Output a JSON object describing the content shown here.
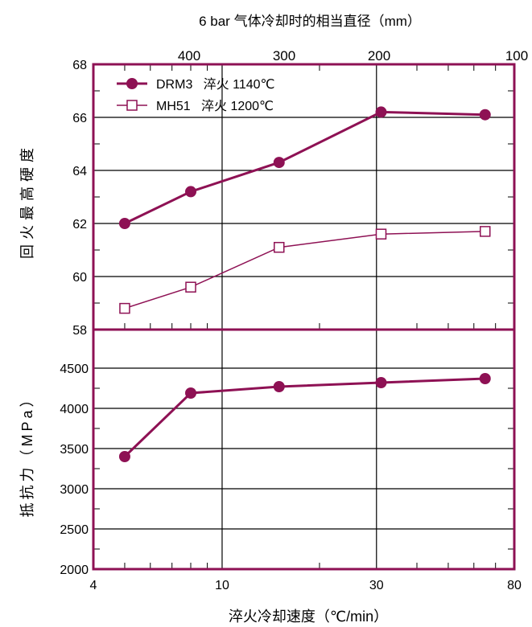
{
  "colors": {
    "frame": "#8e1154",
    "series": "#8e1154",
    "grid": "#000000",
    "text": "#000000"
  },
  "chart_data": [
    {
      "type": "line",
      "panel": "hardness",
      "title": "",
      "xlabel": "淬火冷却速度（℃/min）",
      "x_scale": "log",
      "xlim": [
        4,
        80
      ],
      "x_ticks": [
        4,
        10,
        30,
        80
      ],
      "secondary_x_label": "6 bar 气体冷却时的相当直径（mm）",
      "secondary_x_ticks": [
        "400",
        "300",
        "200",
        "100"
      ],
      "ylabel": "回火最高硬度",
      "ylim": [
        58,
        68
      ],
      "y_ticks": [
        58,
        60,
        62,
        64,
        66,
        68
      ],
      "grid": true,
      "legend": "top-left",
      "series": [
        {
          "name": "DRM3   淬火 1140℃",
          "marker": "filled-circle",
          "x": [
            5,
            8,
            15,
            31,
            65
          ],
          "y": [
            62.0,
            63.2,
            64.3,
            66.2,
            66.1
          ]
        },
        {
          "name": "MH51   淬火 1200℃",
          "marker": "open-square",
          "x": [
            5,
            8,
            15,
            31,
            65
          ],
          "y": [
            58.8,
            59.6,
            61.1,
            61.6,
            61.7
          ]
        }
      ]
    },
    {
      "type": "line",
      "panel": "resistance",
      "title": "",
      "xlabel": "淬火冷却速度（℃/min）",
      "x_scale": "log",
      "xlim": [
        4,
        80
      ],
      "x_ticks": [
        4,
        10,
        30,
        80
      ],
      "ylabel": "抵抗力（MPa）",
      "ylim": [
        2000,
        4500
      ],
      "y_ticks": [
        2000,
        2500,
        3000,
        3500,
        4000,
        4500
      ],
      "grid": true,
      "series": [
        {
          "marker": "filled-circle",
          "x": [
            5,
            8,
            15,
            31,
            65
          ],
          "y": [
            3400,
            4190,
            4270,
            4320,
            4370
          ]
        }
      ]
    }
  ],
  "labels": {
    "top_axis_title": "6 bar 气体冷却时的相当直径（mm）",
    "top_ticks": [
      "400",
      "300",
      "200",
      "100"
    ],
    "bottom_axis_title": "淬火冷却速度（℃/min）",
    "bottom_ticks": [
      "4",
      "10",
      "30",
      "80"
    ],
    "hardness_axis_title": "回火最高硬度",
    "hardness_ticks": [
      "58",
      "60",
      "62",
      "64",
      "66",
      "68"
    ],
    "resistance_axis_title": "抵抗力（MPa）",
    "resistance_ticks": [
      "2000",
      "2500",
      "3000",
      "3500",
      "4000",
      "4500"
    ],
    "legend_drm3": "DRM3   淬火 1140℃",
    "legend_mh51": "MH51   淬火 1200℃"
  }
}
